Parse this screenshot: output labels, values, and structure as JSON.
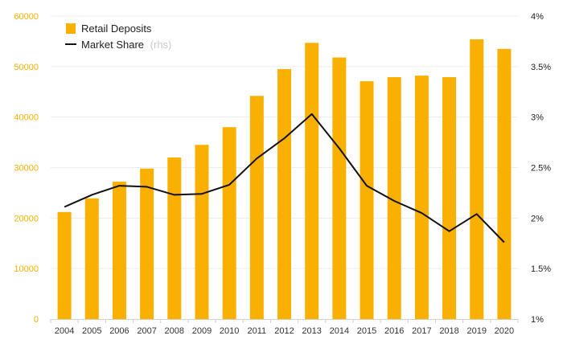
{
  "chart_data": {
    "type": "bar",
    "title": "",
    "categories": [
      "2004",
      "2005",
      "2006",
      "2007",
      "2008",
      "2009",
      "2010",
      "2011",
      "2012",
      "2013",
      "2014",
      "2015",
      "2016",
      "2017",
      "2018",
      "2019",
      "2020"
    ],
    "series": [
      {
        "name": "Retail Deposits",
        "type": "bar",
        "axis": "left",
        "color": "#f9b000",
        "values": [
          21200,
          23900,
          27200,
          29800,
          32000,
          34500,
          38000,
          44200,
          49500,
          54700,
          51800,
          47100,
          47900,
          48200,
          47900,
          55400,
          53500
        ]
      },
      {
        "name": "Market Share",
        "name_suffix": "(rhs)",
        "type": "line",
        "axis": "right",
        "color": "#111111",
        "values": [
          2.11,
          2.23,
          2.32,
          2.31,
          2.23,
          2.24,
          2.33,
          2.59,
          2.79,
          3.03,
          2.69,
          2.32,
          2.17,
          2.05,
          1.87,
          2.04,
          1.76
        ]
      }
    ],
    "y_left": {
      "ylim": [
        0,
        60000
      ],
      "ticks": [
        "0",
        "10000",
        "20000",
        "30000",
        "40000",
        "50000",
        "60000"
      ],
      "tick_values": [
        0,
        10000,
        20000,
        30000,
        40000,
        50000,
        60000
      ]
    },
    "y_right": {
      "ylim": [
        1,
        4
      ],
      "ticks": [
        "1%",
        "1.5%",
        "2%",
        "2.5%",
        "3%",
        "3.5%",
        "4%"
      ],
      "tick_values": [
        1,
        1.5,
        2,
        2.5,
        3,
        3.5,
        4
      ]
    },
    "legend": {
      "position": "top-left"
    },
    "grid": true
  }
}
